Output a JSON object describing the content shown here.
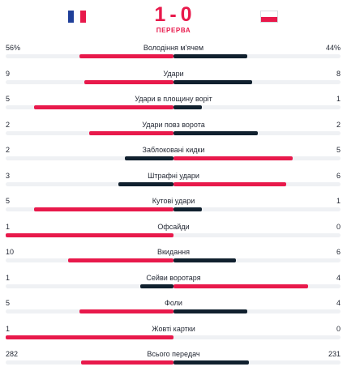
{
  "match": {
    "home_score": "1",
    "separator": "-",
    "away_score": "0",
    "status": "ПЕРЕРВА",
    "home_flag": {
      "icon": "france-flag-icon",
      "colors": [
        "#1f3f99",
        "#ffffff",
        "#e8194b"
      ]
    },
    "away_flag": {
      "icon": "poland-flag-icon",
      "colors": [
        "#ffffff",
        "#e8194b"
      ]
    }
  },
  "colors": {
    "accent": "#e8194b",
    "dark": "#10202e",
    "track": "#eff1f4"
  },
  "stats": [
    {
      "label": "Володіння м'ячем",
      "home": "56%",
      "away": "44%",
      "home_share": 0.56,
      "away_share": 0.44
    },
    {
      "label": "Удари",
      "home": "9",
      "away": "8",
      "home_share": 0.53,
      "away_share": 0.47
    },
    {
      "label": "Удари в площину воріт",
      "home": "5",
      "away": "1",
      "home_share": 0.83,
      "away_share": 0.17
    },
    {
      "label": "Удари повз ворота",
      "home": "2",
      "away": "2",
      "home_share": 0.5,
      "away_share": 0.5
    },
    {
      "label": "Заблоковані кидки",
      "home": "2",
      "away": "5",
      "home_share": 0.29,
      "away_share": 0.71
    },
    {
      "label": "Штрафні удари",
      "home": "3",
      "away": "6",
      "home_share": 0.33,
      "away_share": 0.67
    },
    {
      "label": "Кутові удари",
      "home": "5",
      "away": "1",
      "home_share": 0.83,
      "away_share": 0.17
    },
    {
      "label": "Офсайди",
      "home": "1",
      "away": "0",
      "home_share": 1.0,
      "away_share": 0.0
    },
    {
      "label": "Вкидання",
      "home": "10",
      "away": "6",
      "home_share": 0.63,
      "away_share": 0.37
    },
    {
      "label": "Сейви воротаря",
      "home": "1",
      "away": "4",
      "home_share": 0.2,
      "away_share": 0.8
    },
    {
      "label": "Фоли",
      "home": "5",
      "away": "4",
      "home_share": 0.56,
      "away_share": 0.44
    },
    {
      "label": "Жовті картки",
      "home": "1",
      "away": "0",
      "home_share": 1.0,
      "away_share": 0.0
    },
    {
      "label": "Всього передач",
      "home": "282",
      "away": "231",
      "home_share": 0.55,
      "away_share": 0.45
    }
  ]
}
